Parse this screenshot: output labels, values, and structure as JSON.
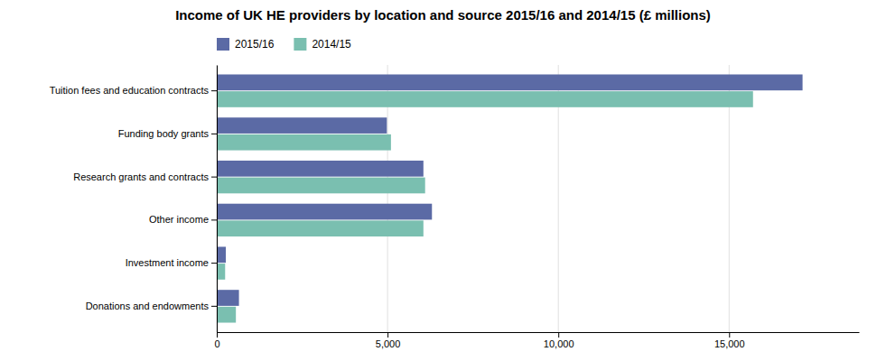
{
  "chart_data": {
    "type": "bar",
    "orientation": "horizontal",
    "title": "Income of UK HE providers by location and source 2015/16 and 2014/15 (£ millions)",
    "categories": [
      "Tuition fees and education contracts",
      "Funding body grants",
      "Research grants and contracts",
      "Other income",
      "Investment income",
      "Donations and endowments"
    ],
    "series": [
      {
        "name": "2015/16",
        "color": "#5b6aa5",
        "values": [
          17150,
          4980,
          6050,
          6300,
          265,
          650
        ]
      },
      {
        "name": "2014/15",
        "color": "#7abfb0",
        "values": [
          15700,
          5100,
          6100,
          6050,
          245,
          560
        ]
      }
    ],
    "xlim": [
      0,
      18800
    ],
    "xticks": [
      0,
      {
        "value": 5000,
        "label": "5,000"
      },
      {
        "value": 10000,
        "label": "10,000"
      },
      {
        "value": 15000,
        "label": "15,000"
      }
    ],
    "grid": true,
    "legend": "top"
  }
}
